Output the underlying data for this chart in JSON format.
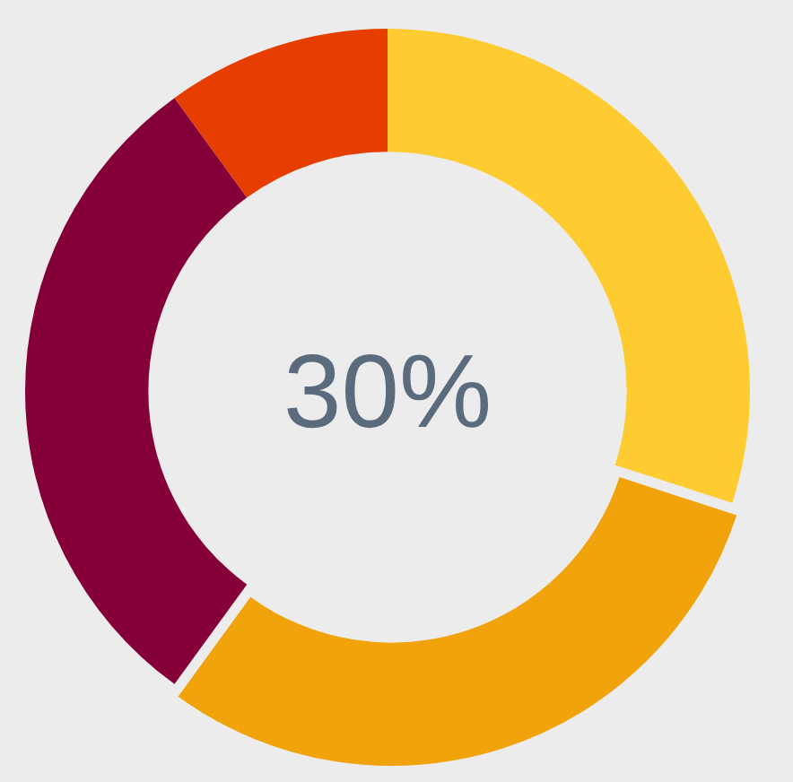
{
  "chart_data": {
    "type": "donut",
    "categories": [
      null,
      null,
      null,
      null
    ],
    "values": [
      30,
      30,
      30,
      10
    ],
    "colors": [
      "#fecb30",
      "#f0a30a",
      "#850038",
      "#e63e00"
    ],
    "annotations": [
      "30%"
    ]
  }
}
